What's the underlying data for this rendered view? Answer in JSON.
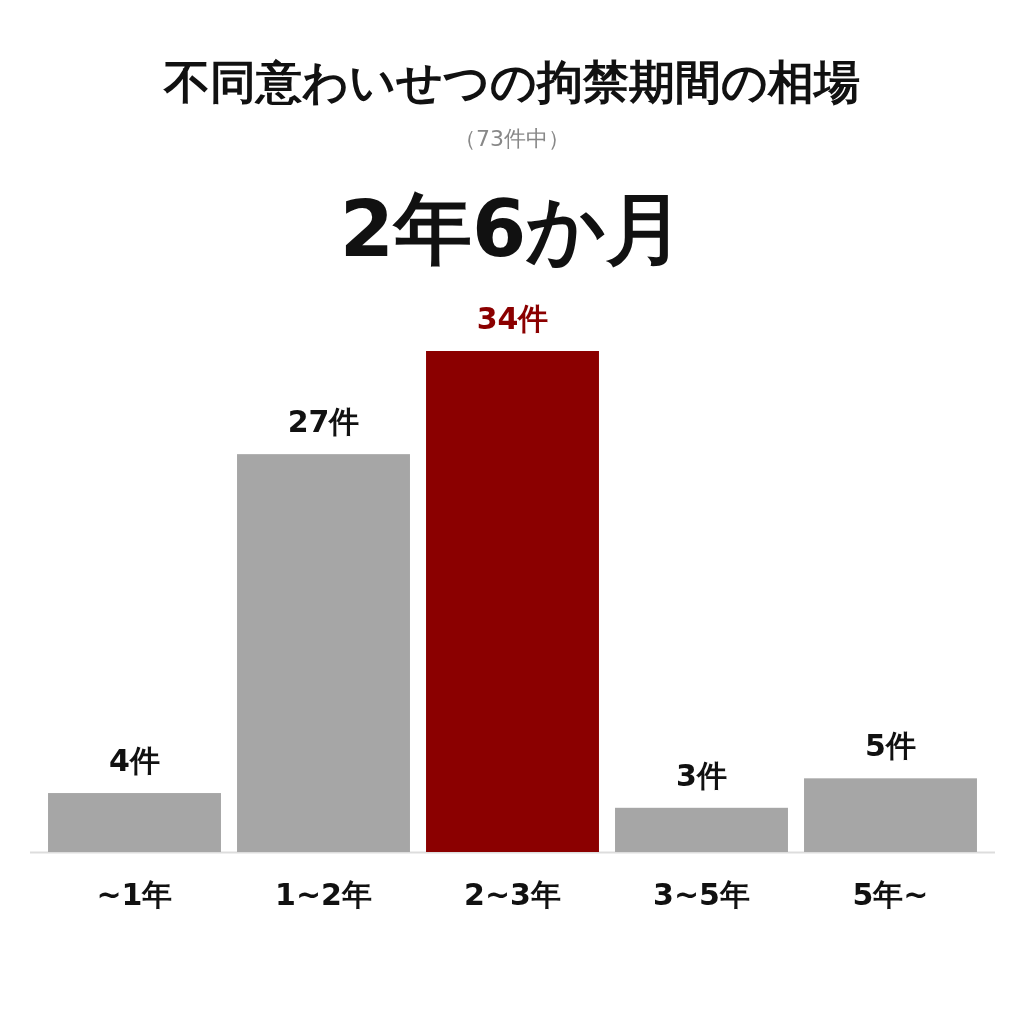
{
  "chart_data": {
    "type": "bar",
    "title": "不同意わいせつの拘禁期間の相場",
    "subtitle": "（73件中）",
    "annotations": [
      "2年6か月"
    ],
    "categories": [
      "~1年",
      "1~2年",
      "2~3年",
      "3~5年",
      "5年~"
    ],
    "values": [
      4,
      27,
      34,
      3,
      5
    ],
    "colors": [
      "#a6a6a6",
      "#a6a6a6",
      "#8b0000",
      "#a6a6a6",
      "#a6a6a6"
    ],
    "value_labels": [
      "4件",
      "27件",
      "34件",
      "3件",
      "5件"
    ]
  }
}
